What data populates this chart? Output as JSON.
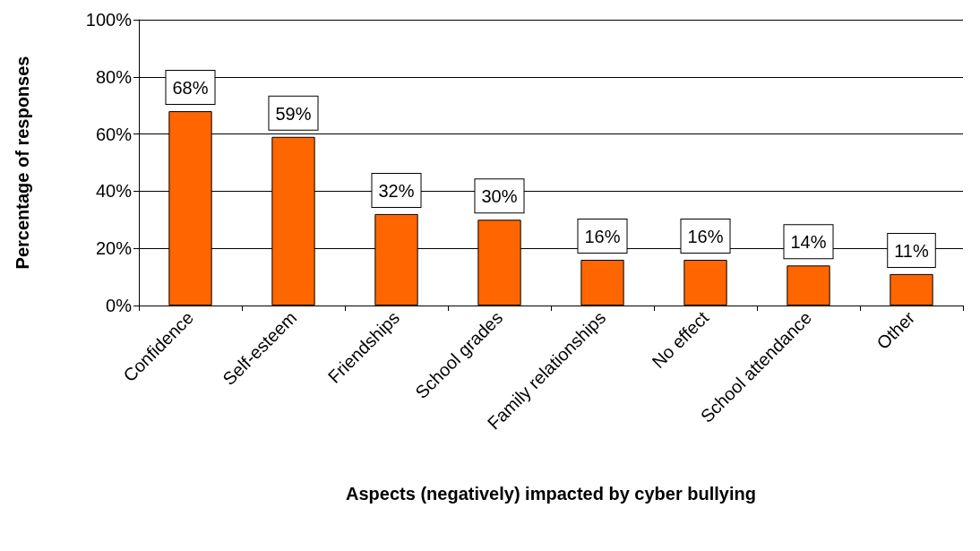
{
  "chart_data": {
    "type": "bar",
    "xlabel": "Aspects (negatively) impacted by cyber bullying",
    "ylabel": "Percentage of responses",
    "categories": [
      "Confidence",
      "Self-esteem",
      "Friendships",
      "School grades",
      "Family relationships",
      "No effect",
      "School attendance",
      "Other"
    ],
    "values": [
      68,
      59,
      32,
      30,
      16,
      16,
      14,
      11
    ],
    "value_labels": [
      "68%",
      "59%",
      "32%",
      "30%",
      "16%",
      "16%",
      "14%",
      "11%"
    ],
    "color": "#ff6600",
    "ylim": [
      0,
      100
    ],
    "yticks": [
      {
        "value": 0,
        "label": "0%"
      },
      {
        "value": 20,
        "label": "20%"
      },
      {
        "value": 40,
        "label": "40%"
      },
      {
        "value": 60,
        "label": "60%"
      },
      {
        "value": 80,
        "label": "80%"
      },
      {
        "value": 100,
        "label": "100%"
      }
    ],
    "grid": "y"
  }
}
